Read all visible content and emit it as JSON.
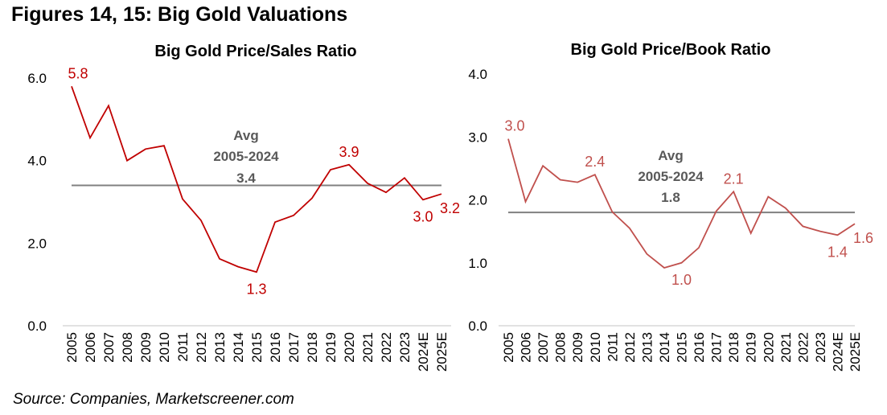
{
  "figure_title": "Figures 14, 15: Big Gold Valuations",
  "source": "Source: Companies, Marketscreener.com",
  "chart_data": [
    {
      "type": "line",
      "title": "Big Gold Price/Sales Ratio",
      "xlabel": "",
      "ylabel": "",
      "ylim": [
        0,
        6
      ],
      "yticks": [
        "0.0",
        "2.0",
        "4.0",
        "6.0"
      ],
      "ytick_values": [
        0,
        2,
        4,
        6
      ],
      "categories": [
        "2005",
        "2006",
        "2007",
        "2008",
        "2009",
        "2010",
        "2011",
        "2012",
        "2013",
        "2014",
        "2015",
        "2016",
        "2017",
        "2018",
        "2019",
        "2020",
        "2021",
        "2022",
        "2023",
        "2024E",
        "2025E"
      ],
      "series": [
        {
          "name": "Price/Sales",
          "color": "#c00000",
          "values": [
            5.8,
            4.55,
            5.33,
            4.0,
            4.28,
            4.36,
            3.07,
            2.55,
            1.62,
            1.43,
            1.3,
            2.51,
            2.67,
            3.09,
            3.78,
            3.9,
            3.45,
            3.23,
            3.58,
            3.05,
            3.19
          ]
        }
      ],
      "average": {
        "value": 3.4,
        "label_lines": [
          "Avg",
          "2005-2024",
          "3.4"
        ],
        "color": "#808080"
      },
      "data_labels": [
        {
          "category": "2005",
          "text": "5.8",
          "pos": "above"
        },
        {
          "category": "2015",
          "text": "1.3",
          "pos": "below"
        },
        {
          "category": "2020",
          "text": "3.9",
          "pos": "above"
        },
        {
          "category": "2024E",
          "text": "3.0",
          "pos": "below"
        },
        {
          "category": "2025E",
          "text": "3.2",
          "pos": "below-right"
        }
      ],
      "grid": false,
      "legend": "none"
    },
    {
      "type": "line",
      "title": "Big Gold Price/Book Ratio",
      "xlabel": "",
      "ylabel": "",
      "ylim": [
        0,
        4
      ],
      "yticks": [
        "0.0",
        "1.0",
        "2.0",
        "3.0",
        "4.0"
      ],
      "ytick_values": [
        0,
        1,
        2,
        3,
        4
      ],
      "categories": [
        "2005",
        "2006",
        "2007",
        "2008",
        "2009",
        "2010",
        "2011",
        "2012",
        "2013",
        "2014",
        "2015",
        "2016",
        "2017",
        "2018",
        "2019",
        "2020",
        "2021",
        "2022",
        "2023",
        "2024E",
        "2025E"
      ],
      "series": [
        {
          "name": "Price/Book",
          "color": "#c0504d",
          "values": [
            2.97,
            1.97,
            2.54,
            2.32,
            2.28,
            2.4,
            1.81,
            1.55,
            1.14,
            0.92,
            1.0,
            1.24,
            1.82,
            2.13,
            1.47,
            2.05,
            1.87,
            1.58,
            1.5,
            1.44,
            1.62
          ]
        }
      ],
      "average": {
        "value": 1.8,
        "label_lines": [
          "Avg",
          "2005-2024",
          "1.8"
        ],
        "color": "#808080"
      },
      "data_labels": [
        {
          "category": "2005",
          "text": "3.0",
          "pos": "above"
        },
        {
          "category": "2010",
          "text": "2.4",
          "pos": "above"
        },
        {
          "category": "2015",
          "text": "1.0",
          "pos": "below"
        },
        {
          "category": "2018",
          "text": "2.1",
          "pos": "above"
        },
        {
          "category": "2024E",
          "text": "1.4",
          "pos": "below"
        },
        {
          "category": "2025E",
          "text": "1.6",
          "pos": "below-right"
        }
      ],
      "grid": false,
      "legend": "none"
    }
  ]
}
